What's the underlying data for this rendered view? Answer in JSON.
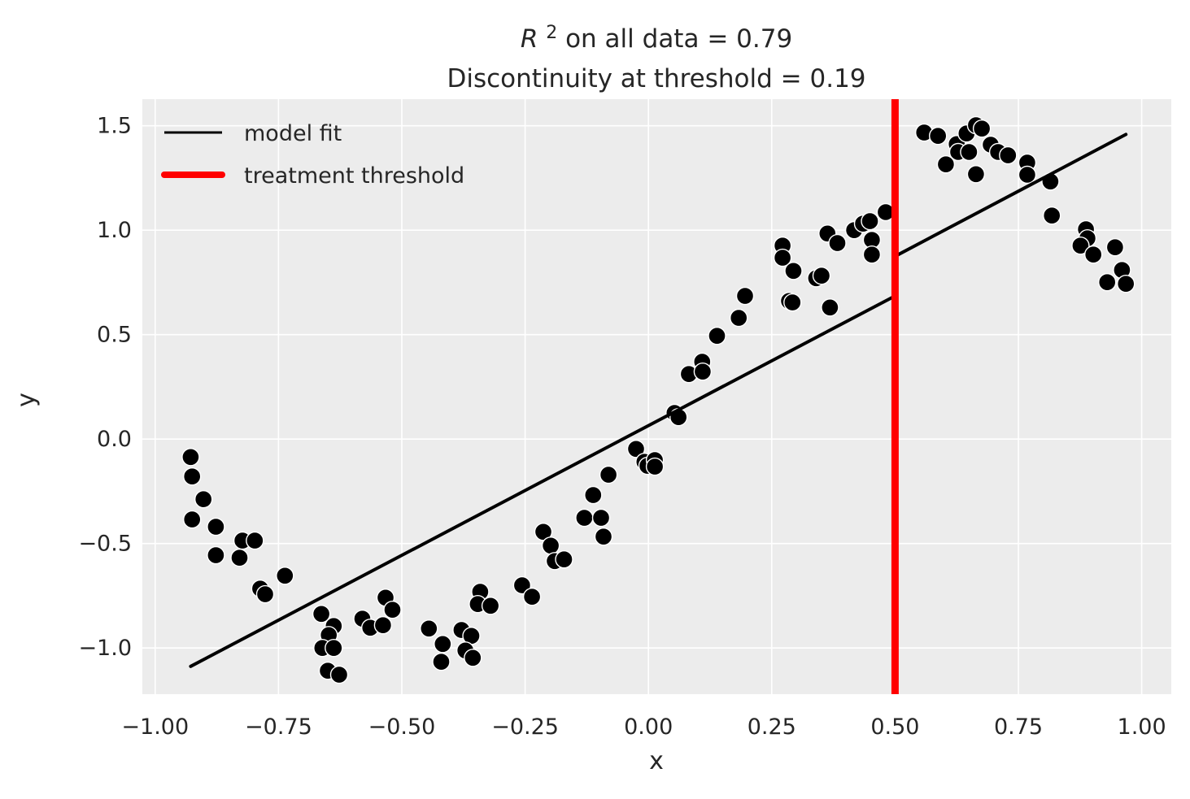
{
  "figure": {
    "background": "#ffffff",
    "axes_background": "#ececec",
    "grid_color": "#ffffff",
    "text_color": "#262626"
  },
  "title": {
    "r_symbol": "R",
    "r_superscript": "2",
    "line1_rest": " on all data = 0.79",
    "line2": "Discontinuity at threshold = 0.19",
    "r_squared_value": 0.79,
    "discontinuity_value": 0.19
  },
  "axes": {
    "xlabel": "x",
    "ylabel": "y"
  },
  "chart_data": {
    "type": "scatter",
    "title": "R^2 on all data = 0.79\nDiscontinuity at threshold = 0.19",
    "xlabel": "x",
    "ylabel": "y",
    "xlim": [
      -1.026,
      1.06
    ],
    "ylim": [
      -1.221,
      1.627
    ],
    "grid": true,
    "legend_position": "upper left",
    "x_ticks": {
      "values": [
        -1.0,
        -0.75,
        -0.5,
        -0.25,
        0.0,
        0.25,
        0.5,
        0.75,
        1.0
      ],
      "labels": [
        "−1.00",
        "−0.75",
        "−0.50",
        "−0.25",
        "0.00",
        "0.25",
        "0.50",
        "0.75",
        "1.00"
      ]
    },
    "y_ticks": {
      "values": [
        -1.0,
        -0.5,
        0.0,
        0.5,
        1.0,
        1.5
      ],
      "labels": [
        "−1.0",
        "−0.5",
        "0.0",
        "0.5",
        "1.0",
        "1.5"
      ]
    },
    "threshold": {
      "x": 0.5,
      "color": "#ff0000",
      "width": 9
    },
    "model_fit": {
      "color": "#000000",
      "width": 4,
      "segments": [
        {
          "x1": -0.928,
          "y1": -1.088,
          "x2": 0.5,
          "y2": 0.685
        },
        {
          "x1": 0.5,
          "y1": 0.875,
          "x2": 0.968,
          "y2": 1.458
        }
      ]
    },
    "marker": {
      "color": "#000000",
      "edge": "#ffffff",
      "radius": 10.5,
      "edge_width": 1.4
    },
    "legend": {
      "items": [
        {
          "label": "model fit",
          "color": "#000000",
          "line_width": 3
        },
        {
          "label": "treatment threshold",
          "color": "#ff0000",
          "line_width": 8
        }
      ]
    },
    "points": [
      [
        -0.928,
        -0.086
      ],
      [
        -0.925,
        -0.179
      ],
      [
        -0.902,
        -0.288
      ],
      [
        -0.925,
        -0.385
      ],
      [
        -0.877,
        -0.42
      ],
      [
        -0.823,
        -0.486
      ],
      [
        -0.798,
        -0.486
      ],
      [
        -0.877,
        -0.556
      ],
      [
        -0.829,
        -0.568
      ],
      [
        -0.737,
        -0.654
      ],
      [
        -0.787,
        -0.716
      ],
      [
        -0.777,
        -0.743
      ],
      [
        -0.663,
        -0.837
      ],
      [
        -0.638,
        -0.895
      ],
      [
        -0.648,
        -0.938
      ],
      [
        -0.661,
        -1.0
      ],
      [
        -0.638,
        -1.0
      ],
      [
        -0.65,
        -1.109
      ],
      [
        -0.627,
        -1.128
      ],
      [
        -0.58,
        -0.86
      ],
      [
        -0.564,
        -0.903
      ],
      [
        -0.538,
        -0.891
      ],
      [
        -0.533,
        -0.759
      ],
      [
        -0.519,
        -0.817
      ],
      [
        -0.445,
        -0.907
      ],
      [
        -0.417,
        -0.981
      ],
      [
        -0.42,
        -1.066
      ],
      [
        -0.379,
        -0.914
      ],
      [
        -0.359,
        -0.942
      ],
      [
        -0.371,
        -1.012
      ],
      [
        -0.356,
        -1.047
      ],
      [
        -0.341,
        -0.731
      ],
      [
        -0.346,
        -0.79
      ],
      [
        -0.32,
        -0.798
      ],
      [
        -0.256,
        -0.7
      ],
      [
        -0.236,
        -0.755
      ],
      [
        -0.213,
        -0.444
      ],
      [
        -0.198,
        -0.51
      ],
      [
        -0.19,
        -0.584
      ],
      [
        -0.171,
        -0.576
      ],
      [
        -0.112,
        -0.268
      ],
      [
        -0.13,
        -0.377
      ],
      [
        -0.096,
        -0.377
      ],
      [
        -0.091,
        -0.467
      ],
      [
        -0.081,
        -0.171
      ],
      [
        -0.025,
        -0.047
      ],
      [
        -0.008,
        -0.109
      ],
      [
        -0.002,
        -0.128
      ],
      [
        0.013,
        -0.101
      ],
      [
        0.013,
        -0.132
      ],
      [
        0.053,
        0.125
      ],
      [
        0.061,
        0.105
      ],
      [
        0.082,
        0.311
      ],
      [
        0.109,
        0.37
      ],
      [
        0.11,
        0.323
      ],
      [
        0.139,
        0.494
      ],
      [
        0.183,
        0.58
      ],
      [
        0.196,
        0.685
      ],
      [
        0.272,
        0.926
      ],
      [
        0.272,
        0.868
      ],
      [
        0.294,
        0.805
      ],
      [
        0.285,
        0.661
      ],
      [
        0.292,
        0.654
      ],
      [
        0.34,
        0.77
      ],
      [
        0.351,
        0.782
      ],
      [
        0.363,
        0.984
      ],
      [
        0.383,
        0.938
      ],
      [
        0.368,
        0.63
      ],
      [
        0.417,
        1.0
      ],
      [
        0.435,
        1.031
      ],
      [
        0.449,
        1.043
      ],
      [
        0.453,
        0.953
      ],
      [
        0.453,
        0.883
      ],
      [
        0.481,
        1.086
      ],
      [
        0.559,
        1.467
      ],
      [
        0.587,
        1.451
      ],
      [
        0.603,
        1.315
      ],
      [
        0.625,
        1.412
      ],
      [
        0.628,
        1.374
      ],
      [
        0.645,
        1.463
      ],
      [
        0.65,
        1.374
      ],
      [
        0.664,
        1.502
      ],
      [
        0.676,
        1.486
      ],
      [
        0.664,
        1.268
      ],
      [
        0.694,
        1.409
      ],
      [
        0.709,
        1.374
      ],
      [
        0.729,
        1.358
      ],
      [
        0.768,
        1.323
      ],
      [
        0.768,
        1.265
      ],
      [
        0.815,
        1.233
      ],
      [
        0.818,
        1.07
      ],
      [
        0.887,
        1.004
      ],
      [
        0.89,
        0.961
      ],
      [
        0.876,
        0.926
      ],
      [
        0.902,
        0.883
      ],
      [
        0.946,
        0.918
      ],
      [
        0.96,
        0.809
      ],
      [
        0.93,
        0.751
      ],
      [
        0.968,
        0.743
      ]
    ]
  }
}
